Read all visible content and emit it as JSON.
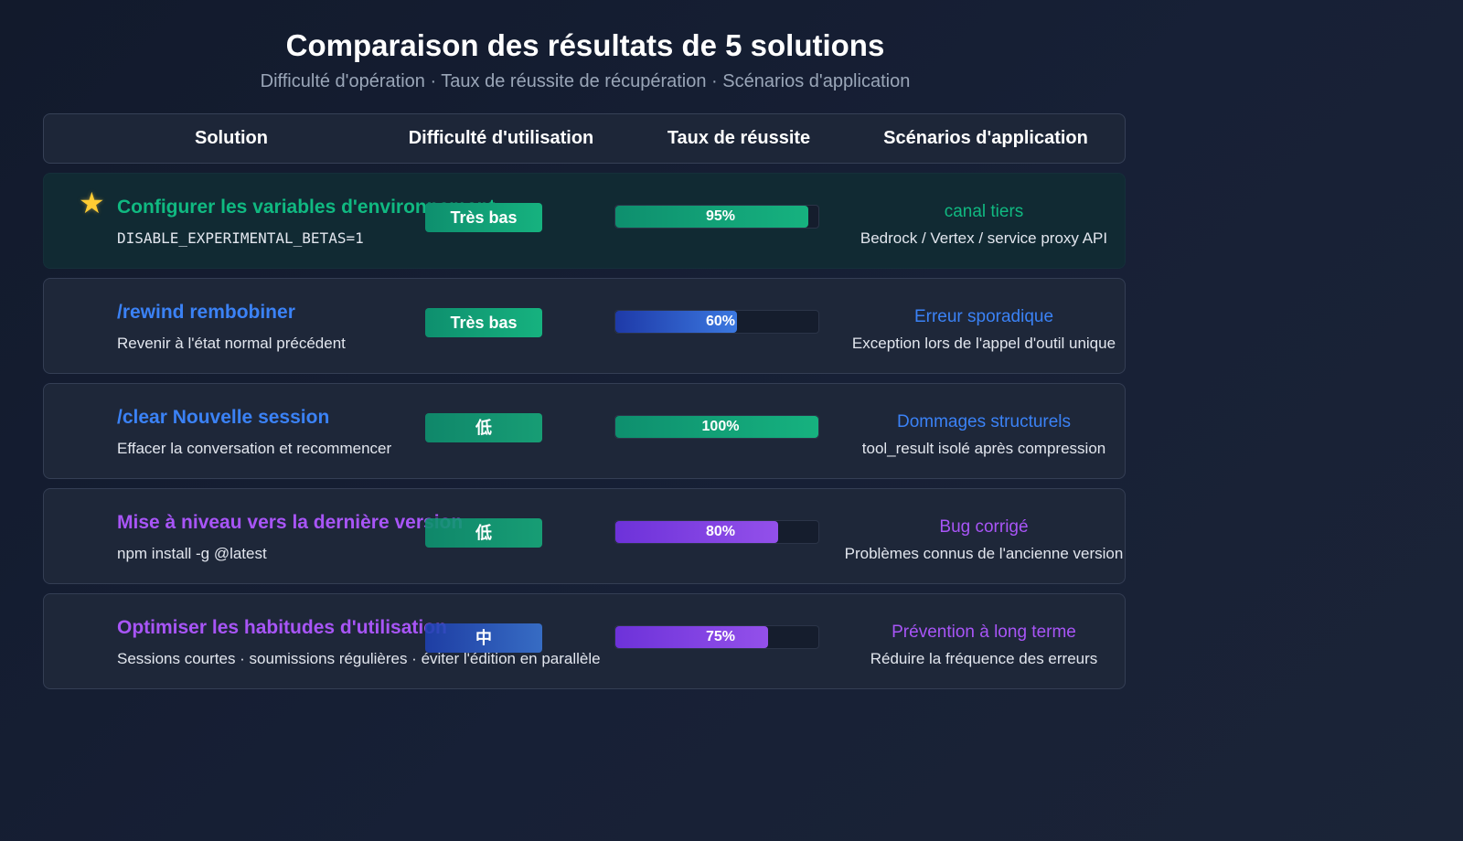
{
  "header": {
    "title": "Comparaison des résultats de 5 solutions",
    "subtitle": "Difficulté d'opération · Taux de réussite de récupération · Scénarios d'application"
  },
  "columns": {
    "solution": "Solution",
    "difficulty": "Difficulté d'utilisation",
    "rate": "Taux de réussite",
    "scenario": "Scénarios d'application"
  },
  "colors": {
    "green": "#10b981",
    "blue": "#3b82f6",
    "purple": "#a855f7",
    "star": "#ffcc33"
  },
  "rows": [
    {
      "icon": "star-icon",
      "icon_glyph": "★",
      "title": "Configurer les variables d'environnement",
      "title_color": "#10b981",
      "description": "DISABLE_EXPERIMENTAL_BETAS=1",
      "difficulty": "Très bas",
      "rate_percent": 95,
      "rate_label": "95%",
      "scenario_title": "canal tiers",
      "scenario_color": "#10b981",
      "scenario_desc": "Bedrock / Vertex / service proxy API"
    },
    {
      "title": "/rewind rembobiner",
      "title_color": "#3b82f6",
      "description": "Revenir à l'état normal précédent",
      "difficulty": "Très bas",
      "rate_percent": 60,
      "rate_label": "60%",
      "scenario_title": "Erreur sporadique",
      "scenario_color": "#3b82f6",
      "scenario_desc": "Exception lors de l'appel d'outil unique"
    },
    {
      "title": "/clear Nouvelle session",
      "title_color": "#3b82f6",
      "description": "Effacer la conversation et recommencer",
      "difficulty": "低",
      "rate_percent": 100,
      "rate_label": "100%",
      "scenario_title": "Dommages structurels",
      "scenario_color": "#3b82f6",
      "scenario_desc": "tool_result isolé après compression"
    },
    {
      "title": "Mise à niveau vers la dernière version",
      "title_color": "#a855f7",
      "description": "npm install -g @latest",
      "difficulty": "低",
      "rate_percent": 80,
      "rate_label": "80%",
      "scenario_title": "Bug corrigé",
      "scenario_color": "#a855f7",
      "scenario_desc": "Problèmes connus de l'ancienne version"
    },
    {
      "title": "Optimiser les habitudes d'utilisation",
      "title_color": "#a855f7",
      "description": "Sessions courtes · soumissions régulières · éviter l'édition en parallèle",
      "difficulty": "中",
      "rate_percent": 75,
      "rate_label": "75%",
      "scenario_title": "Prévention à long terme",
      "scenario_color": "#a855f7",
      "scenario_desc": "Réduire la fréquence des erreurs"
    }
  ]
}
